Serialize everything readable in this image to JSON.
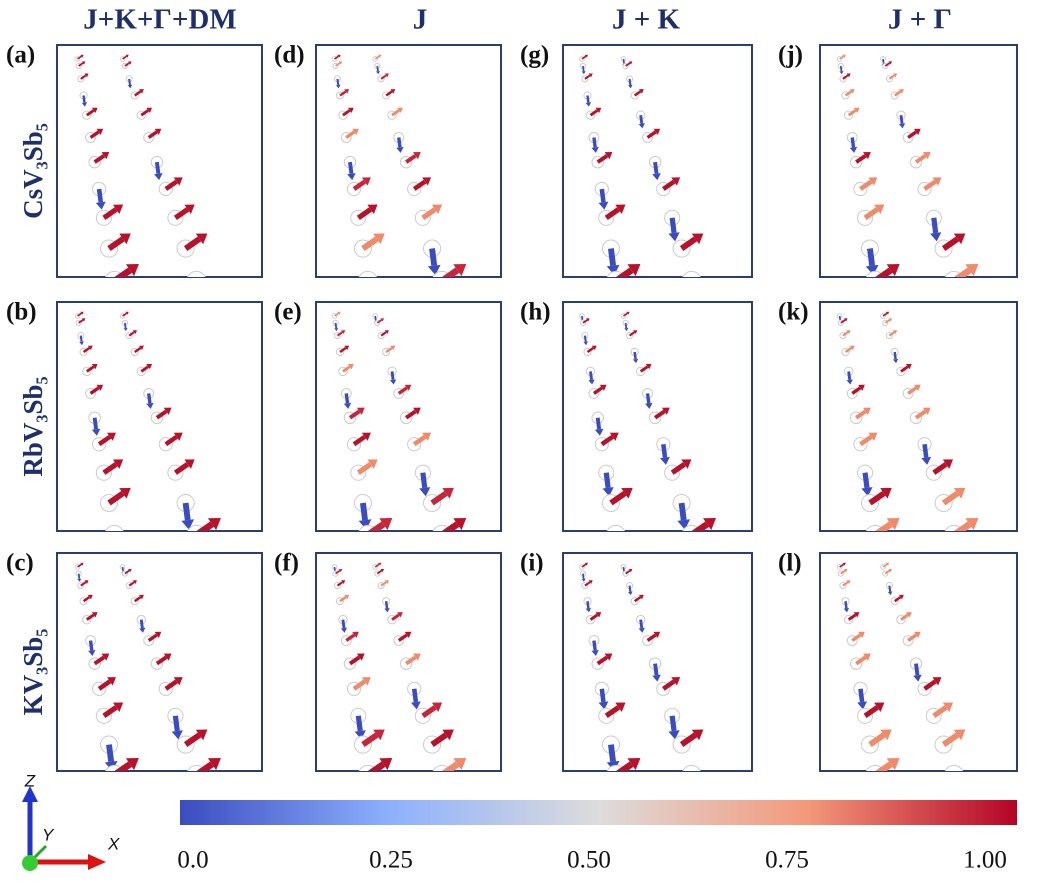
{
  "columns": [
    {
      "title": "J+K+Γ+DM",
      "panels": [
        {
          "label": "(a)"
        },
        {
          "label": "(b)"
        },
        {
          "label": "(c)"
        }
      ]
    },
    {
      "title": "J",
      "panels": [
        {
          "label": "(d)"
        },
        {
          "label": "(e)"
        },
        {
          "label": "(f)"
        }
      ]
    },
    {
      "title": "J + K",
      "panels": [
        {
          "label": "(g)"
        },
        {
          "label": "(h)"
        },
        {
          "label": "(i)"
        }
      ]
    },
    {
      "title": "J + Γ",
      "panels": [
        {
          "label": "(j)"
        },
        {
          "label": "(k)"
        },
        {
          "label": "(l)"
        }
      ]
    }
  ],
  "rows": [
    {
      "label": "CsV₃Sb₅"
    },
    {
      "label": "RbV₃Sb₅"
    },
    {
      "label": "KV₃Sb₅"
    }
  ],
  "colorbar": {
    "ticks": [
      {
        "value": 0,
        "label": "0.0"
      },
      {
        "value": 0.25,
        "label": "0.25"
      },
      {
        "value": 0.5,
        "label": "0.50"
      },
      {
        "value": 0.75,
        "label": "0.75"
      },
      {
        "value": 1,
        "label": "1.00"
      }
    ]
  },
  "axes": {
    "z": "Z",
    "y": "Y",
    "x": "X"
  }
}
